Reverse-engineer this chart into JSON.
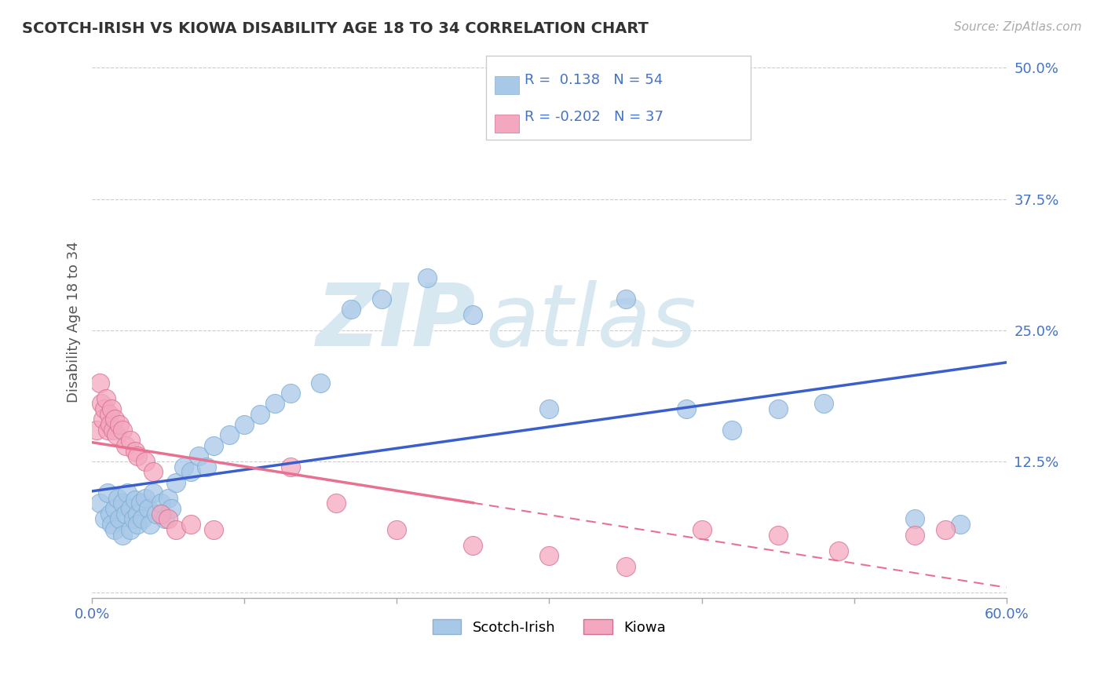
{
  "title": "SCOTCH-IRISH VS KIOWA DISABILITY AGE 18 TO 34 CORRELATION CHART",
  "source": "Source: ZipAtlas.com",
  "ylabel": "Disability Age 18 to 34",
  "xlim": [
    0.0,
    0.6
  ],
  "ylim": [
    -0.005,
    0.52
  ],
  "yticks": [
    0.0,
    0.125,
    0.25,
    0.375,
    0.5
  ],
  "ytick_labels": [
    "",
    "12.5%",
    "25.0%",
    "37.5%",
    "50.0%"
  ],
  "scotch_irish_R": 0.138,
  "scotch_irish_N": 54,
  "kiowa_R": -0.202,
  "kiowa_N": 37,
  "scotch_irish_color": "#a8c8e8",
  "kiowa_color": "#f4a8c0",
  "scotch_irish_line_color": "#3a5fcd",
  "kiowa_line_color": "#e87090",
  "legend_text_color": "#4472c4",
  "watermark_color": "#d8e8f0",
  "scotch_irish_x": [
    0.005,
    0.008,
    0.01,
    0.012,
    0.013,
    0.015,
    0.015,
    0.017,
    0.018,
    0.02,
    0.02,
    0.022,
    0.023,
    0.025,
    0.025,
    0.027,
    0.028,
    0.03,
    0.03,
    0.032,
    0.033,
    0.035,
    0.037,
    0.038,
    0.04,
    0.042,
    0.045,
    0.048,
    0.05,
    0.052,
    0.055,
    0.06,
    0.065,
    0.07,
    0.075,
    0.08,
    0.09,
    0.1,
    0.11,
    0.12,
    0.13,
    0.15,
    0.17,
    0.19,
    0.22,
    0.25,
    0.3,
    0.35,
    0.39,
    0.42,
    0.45,
    0.48,
    0.54,
    0.57
  ],
  "scotch_irish_y": [
    0.085,
    0.07,
    0.095,
    0.075,
    0.065,
    0.08,
    0.06,
    0.09,
    0.07,
    0.085,
    0.055,
    0.075,
    0.095,
    0.08,
    0.06,
    0.07,
    0.088,
    0.075,
    0.065,
    0.085,
    0.07,
    0.09,
    0.08,
    0.065,
    0.095,
    0.075,
    0.085,
    0.07,
    0.09,
    0.08,
    0.105,
    0.12,
    0.115,
    0.13,
    0.12,
    0.14,
    0.15,
    0.16,
    0.17,
    0.18,
    0.19,
    0.2,
    0.27,
    0.28,
    0.3,
    0.265,
    0.175,
    0.28,
    0.175,
    0.155,
    0.175,
    0.18,
    0.07,
    0.065
  ],
  "kiowa_x": [
    0.003,
    0.005,
    0.006,
    0.007,
    0.008,
    0.009,
    0.01,
    0.011,
    0.012,
    0.013,
    0.014,
    0.015,
    0.016,
    0.018,
    0.02,
    0.022,
    0.025,
    0.028,
    0.03,
    0.035,
    0.04,
    0.045,
    0.05,
    0.055,
    0.065,
    0.08,
    0.13,
    0.16,
    0.2,
    0.25,
    0.3,
    0.35,
    0.4,
    0.45,
    0.49,
    0.54,
    0.56
  ],
  "kiowa_y": [
    0.155,
    0.2,
    0.18,
    0.165,
    0.175,
    0.185,
    0.155,
    0.17,
    0.16,
    0.175,
    0.155,
    0.165,
    0.15,
    0.16,
    0.155,
    0.14,
    0.145,
    0.135,
    0.13,
    0.125,
    0.115,
    0.075,
    0.07,
    0.06,
    0.065,
    0.06,
    0.12,
    0.085,
    0.06,
    0.045,
    0.035,
    0.025,
    0.06,
    0.055,
    0.04,
    0.055,
    0.06
  ]
}
